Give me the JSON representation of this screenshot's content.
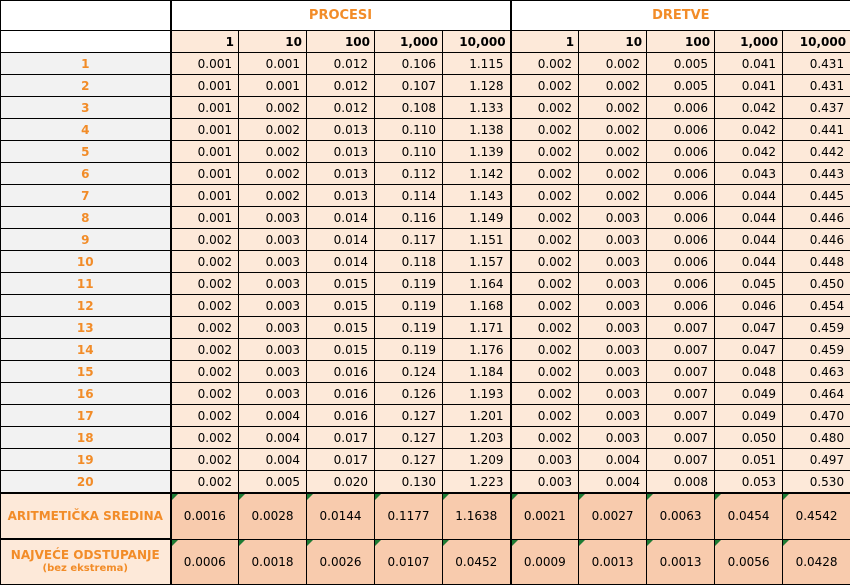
{
  "groups": [
    "PROCESI",
    "DRETVE"
  ],
  "columns": [
    "1",
    "10",
    "100",
    "1,000",
    "10,000"
  ],
  "rows": [
    {
      "label": "1",
      "procesi": [
        "0.001",
        "0.001",
        "0.012",
        "0.106",
        "1.115"
      ],
      "dretve": [
        "0.002",
        "0.002",
        "0.005",
        "0.041",
        "0.431"
      ]
    },
    {
      "label": "2",
      "procesi": [
        "0.001",
        "0.001",
        "0.012",
        "0.107",
        "1.128"
      ],
      "dretve": [
        "0.002",
        "0.002",
        "0.005",
        "0.041",
        "0.431"
      ]
    },
    {
      "label": "3",
      "procesi": [
        "0.001",
        "0.002",
        "0.012",
        "0.108",
        "1.133"
      ],
      "dretve": [
        "0.002",
        "0.002",
        "0.006",
        "0.042",
        "0.437"
      ]
    },
    {
      "label": "4",
      "procesi": [
        "0.001",
        "0.002",
        "0.013",
        "0.110",
        "1.138"
      ],
      "dretve": [
        "0.002",
        "0.002",
        "0.006",
        "0.042",
        "0.441"
      ]
    },
    {
      "label": "5",
      "procesi": [
        "0.001",
        "0.002",
        "0.013",
        "0.110",
        "1.139"
      ],
      "dretve": [
        "0.002",
        "0.002",
        "0.006",
        "0.042",
        "0.442"
      ]
    },
    {
      "label": "6",
      "procesi": [
        "0.001",
        "0.002",
        "0.013",
        "0.112",
        "1.142"
      ],
      "dretve": [
        "0.002",
        "0.002",
        "0.006",
        "0.043",
        "0.443"
      ]
    },
    {
      "label": "7",
      "procesi": [
        "0.001",
        "0.002",
        "0.013",
        "0.114",
        "1.143"
      ],
      "dretve": [
        "0.002",
        "0.002",
        "0.006",
        "0.044",
        "0.445"
      ]
    },
    {
      "label": "8",
      "procesi": [
        "0.001",
        "0.003",
        "0.014",
        "0.116",
        "1.149"
      ],
      "dretve": [
        "0.002",
        "0.003",
        "0.006",
        "0.044",
        "0.446"
      ]
    },
    {
      "label": "9",
      "procesi": [
        "0.002",
        "0.003",
        "0.014",
        "0.117",
        "1.151"
      ],
      "dretve": [
        "0.002",
        "0.003",
        "0.006",
        "0.044",
        "0.446"
      ]
    },
    {
      "label": "10",
      "procesi": [
        "0.002",
        "0.003",
        "0.014",
        "0.118",
        "1.157"
      ],
      "dretve": [
        "0.002",
        "0.003",
        "0.006",
        "0.044",
        "0.448"
      ]
    },
    {
      "label": "11",
      "procesi": [
        "0.002",
        "0.003",
        "0.015",
        "0.119",
        "1.164"
      ],
      "dretve": [
        "0.002",
        "0.003",
        "0.006",
        "0.045",
        "0.450"
      ]
    },
    {
      "label": "12",
      "procesi": [
        "0.002",
        "0.003",
        "0.015",
        "0.119",
        "1.168"
      ],
      "dretve": [
        "0.002",
        "0.003",
        "0.006",
        "0.046",
        "0.454"
      ]
    },
    {
      "label": "13",
      "procesi": [
        "0.002",
        "0.003",
        "0.015",
        "0.119",
        "1.171"
      ],
      "dretve": [
        "0.002",
        "0.003",
        "0.007",
        "0.047",
        "0.459"
      ]
    },
    {
      "label": "14",
      "procesi": [
        "0.002",
        "0.003",
        "0.015",
        "0.119",
        "1.176"
      ],
      "dretve": [
        "0.002",
        "0.003",
        "0.007",
        "0.047",
        "0.459"
      ]
    },
    {
      "label": "15",
      "procesi": [
        "0.002",
        "0.003",
        "0.016",
        "0.124",
        "1.184"
      ],
      "dretve": [
        "0.002",
        "0.003",
        "0.007",
        "0.048",
        "0.463"
      ]
    },
    {
      "label": "16",
      "procesi": [
        "0.002",
        "0.003",
        "0.016",
        "0.126",
        "1.193"
      ],
      "dretve": [
        "0.002",
        "0.003",
        "0.007",
        "0.049",
        "0.464"
      ]
    },
    {
      "label": "17",
      "procesi": [
        "0.002",
        "0.004",
        "0.016",
        "0.127",
        "1.201"
      ],
      "dretve": [
        "0.002",
        "0.003",
        "0.007",
        "0.049",
        "0.470"
      ]
    },
    {
      "label": "18",
      "procesi": [
        "0.002",
        "0.004",
        "0.017",
        "0.127",
        "1.203"
      ],
      "dretve": [
        "0.002",
        "0.003",
        "0.007",
        "0.050",
        "0.480"
      ]
    },
    {
      "label": "19",
      "procesi": [
        "0.002",
        "0.004",
        "0.017",
        "0.127",
        "1.209"
      ],
      "dretve": [
        "0.003",
        "0.004",
        "0.007",
        "0.051",
        "0.497"
      ]
    },
    {
      "label": "20",
      "procesi": [
        "0.002",
        "0.005",
        "0.020",
        "0.130",
        "1.223"
      ],
      "dretve": [
        "0.003",
        "0.004",
        "0.008",
        "0.053",
        "0.530"
      ]
    }
  ],
  "stats": [
    {
      "label": "ARITMETIČKA SREDINA",
      "sub": "",
      "procesi": [
        "0.0016",
        "0.0028",
        "0.0144",
        "0.1177",
        "1.1638"
      ],
      "dretve": [
        "0.0021",
        "0.0027",
        "0.0063",
        "0.0454",
        "0.4542"
      ]
    },
    {
      "label": "NAJVEĆE ODSTUPANJE",
      "sub": "(bez ekstrema)",
      "procesi": [
        "0.0006",
        "0.0018",
        "0.0026",
        "0.0107",
        "0.0452"
      ],
      "dretve": [
        "0.0009",
        "0.0013",
        "0.0013",
        "0.0056",
        "0.0428"
      ]
    }
  ],
  "colors": {
    "accent": "#f28c28",
    "cell_bg": "#fde9d9",
    "stat_bg": "#f8cbad",
    "label_bg": "#f2f2f2",
    "marker": "#1e7b34"
  }
}
